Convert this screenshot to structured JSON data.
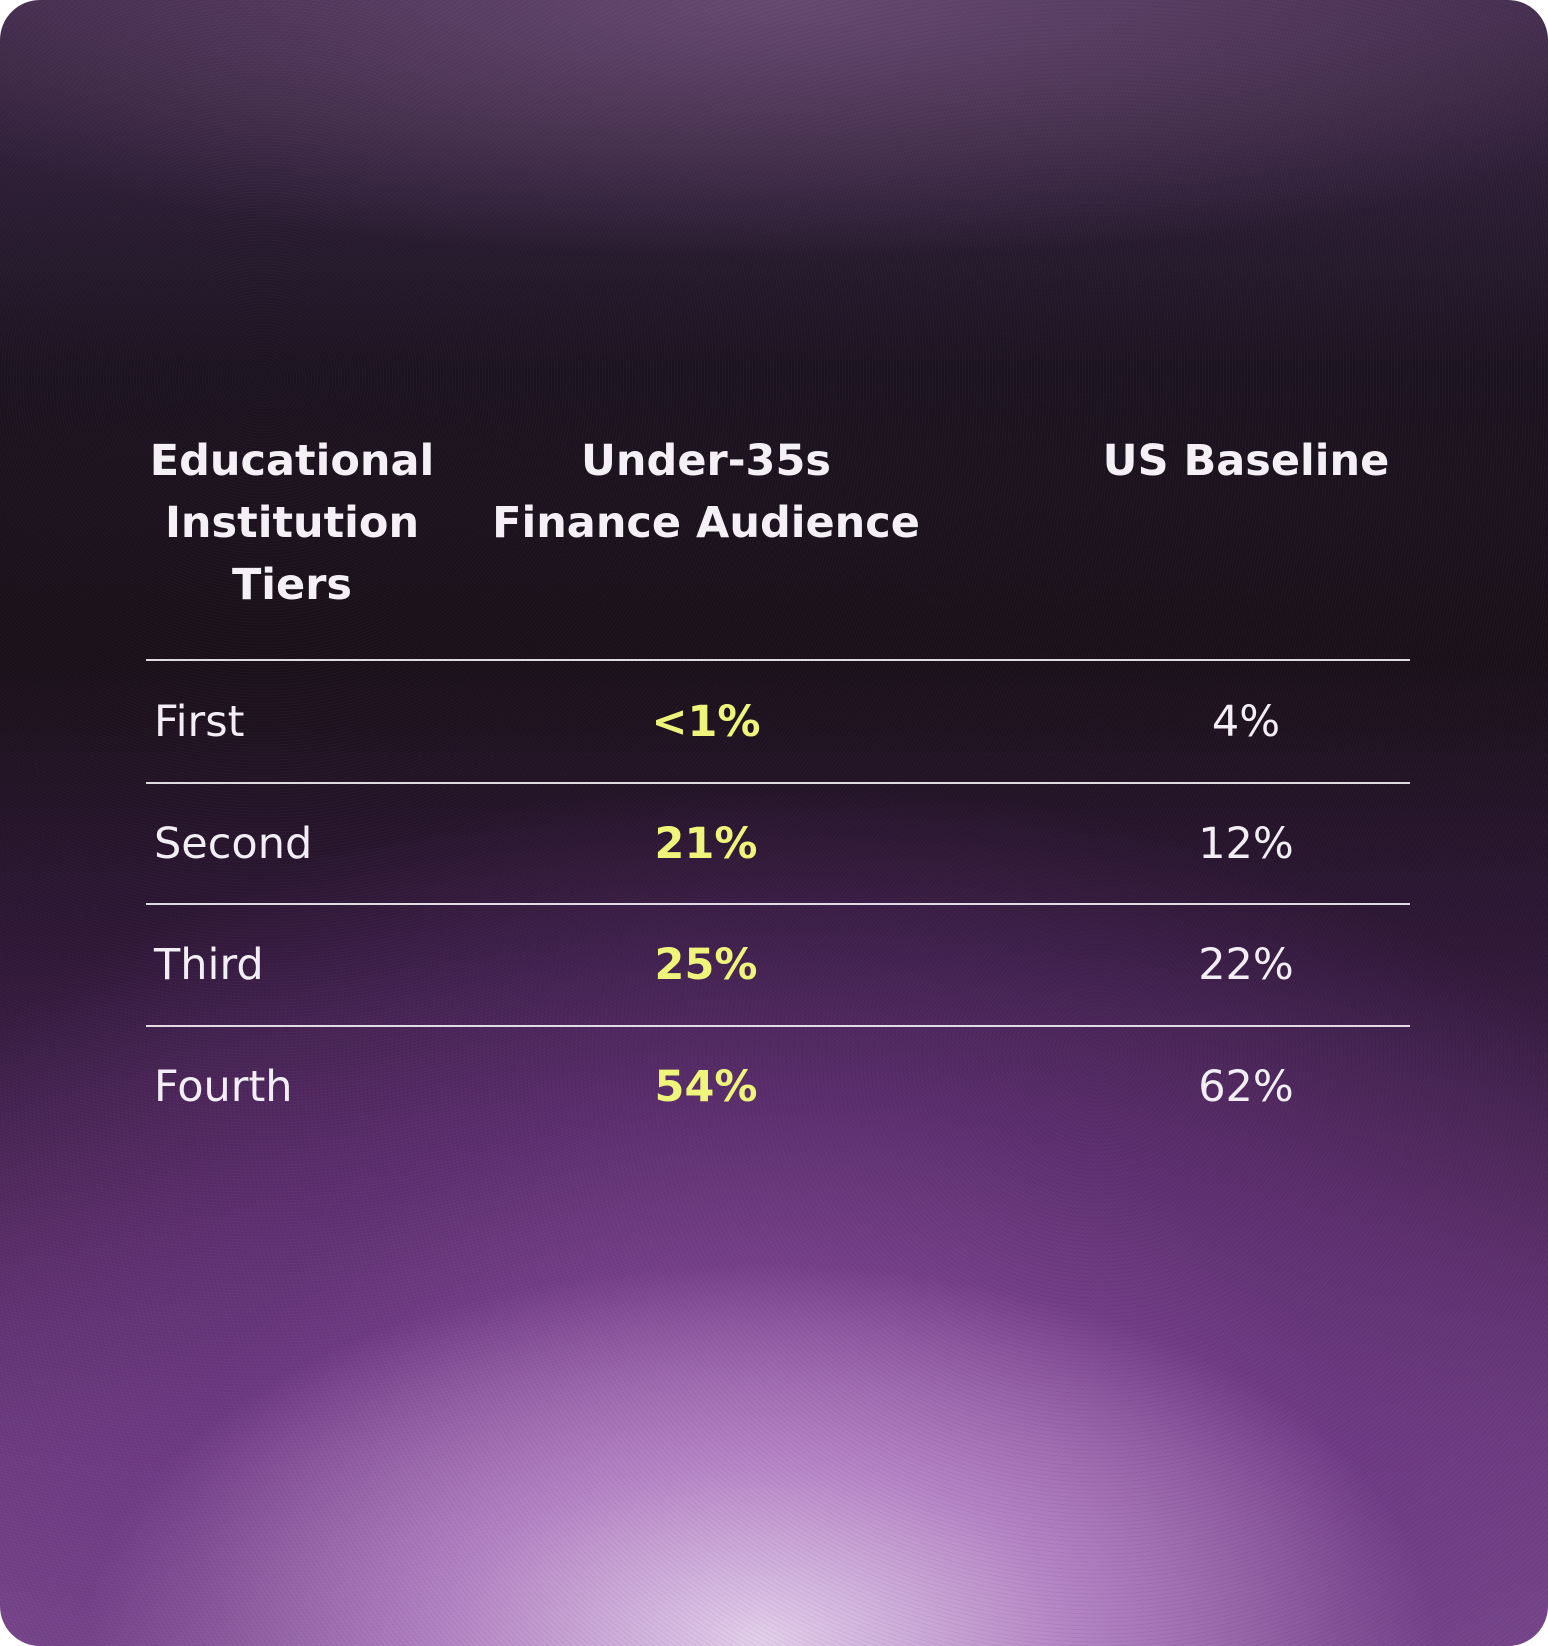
{
  "table": {
    "headers": {
      "tier": [
        "Educational",
        "Institution",
        "Tiers"
      ],
      "audience": [
        "Under-35s",
        "Finance Audience"
      ],
      "baseline": [
        "US Baseline"
      ]
    },
    "rows": [
      {
        "tier": "First",
        "audience": "<1%",
        "baseline": "4%"
      },
      {
        "tier": "Second",
        "audience": "21%",
        "baseline": "12%"
      },
      {
        "tier": "Third",
        "audience": "25%",
        "baseline": "22%"
      },
      {
        "tier": "Fourth",
        "audience": "54%",
        "baseline": "62%"
      }
    ]
  },
  "colors": {
    "highlight": "#eef57a",
    "text": "#f3eef5"
  },
  "chart_data": {
    "type": "table",
    "columns": [
      "Educational Institution Tiers",
      "Under-35s Finance Audience",
      "US Baseline"
    ],
    "categories": [
      "First",
      "Second",
      "Third",
      "Fourth"
    ],
    "series": [
      {
        "name": "Under-35s Finance Audience",
        "values": [
          "<1%",
          "21%",
          "25%",
          "54%"
        ]
      },
      {
        "name": "US Baseline",
        "values": [
          "4%",
          "12%",
          "22%",
          "62%"
        ]
      }
    ]
  }
}
